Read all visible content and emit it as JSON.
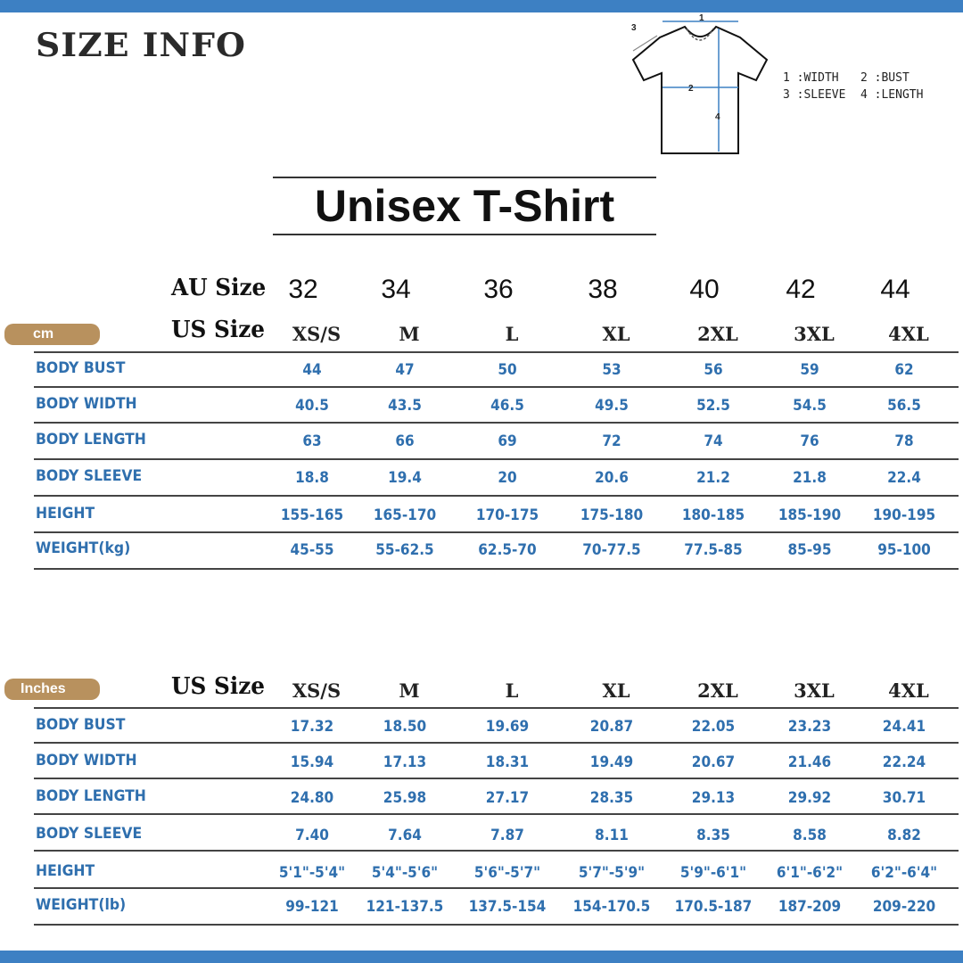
{
  "header": {
    "title": "SIZE INFO",
    "banner": "Unisex T-Shirt"
  },
  "diagram": {
    "labels": [
      "1",
      "2",
      "3",
      "4"
    ],
    "legend": [
      "1 :WIDTH",
      "2 :BUST",
      "3 :SLEEVE",
      "4 :LENGTH"
    ],
    "accent": "#3d80c3"
  },
  "colors": {
    "bar": "#3d80c3",
    "value_text": "#2f6fae",
    "badge": "#b8915e"
  },
  "cm_table": {
    "badge": "cm",
    "au_label": "AU Size",
    "us_label": "US Size",
    "au_sizes": [
      "32",
      "34",
      "36",
      "38",
      "40",
      "42",
      "44"
    ],
    "us_sizes": [
      "XS/S",
      "M",
      "L",
      "XL",
      "2XL",
      "3XL",
      "4XL"
    ],
    "rows": [
      {
        "label": "BODY BUST",
        "values": [
          "44",
          "47",
          "50",
          "53",
          "56",
          "59",
          "62"
        ]
      },
      {
        "label": "BODY WIDTH",
        "values": [
          "40.5",
          "43.5",
          "46.5",
          "49.5",
          "52.5",
          "54.5",
          "56.5"
        ]
      },
      {
        "label": "BODY LENGTH",
        "values": [
          "63",
          "66",
          "69",
          "72",
          "74",
          "76",
          "78"
        ]
      },
      {
        "label": "BODY SLEEVE",
        "values": [
          "18.8",
          "19.4",
          "20",
          "20.6",
          "21.2",
          "21.8",
          "22.4"
        ]
      },
      {
        "label": "HEIGHT",
        "values": [
          "155-165",
          "165-170",
          "170-175",
          "175-180",
          "180-185",
          "185-190",
          "190-195"
        ]
      },
      {
        "label": "WEIGHT(kg)",
        "values": [
          "45-55",
          "55-62.5",
          "62.5-70",
          "70-77.5",
          "77.5-85",
          "85-95",
          "95-100"
        ]
      }
    ]
  },
  "inch_table": {
    "badge": "Inches",
    "us_label": "US Size",
    "us_sizes": [
      "XS/S",
      "M",
      "L",
      "XL",
      "2XL",
      "3XL",
      "4XL"
    ],
    "rows": [
      {
        "label": "BODY BUST",
        "values": [
          "17.32",
          "18.50",
          "19.69",
          "20.87",
          "22.05",
          "23.23",
          "24.41"
        ]
      },
      {
        "label": "BODY WIDTH",
        "values": [
          "15.94",
          "17.13",
          "18.31",
          "19.49",
          "20.67",
          "21.46",
          "22.24"
        ]
      },
      {
        "label": "BODY LENGTH",
        "values": [
          "24.80",
          "25.98",
          "27.17",
          "28.35",
          "29.13",
          "29.92",
          "30.71"
        ]
      },
      {
        "label": "BODY SLEEVE",
        "values": [
          "7.40",
          "7.64",
          "7.87",
          "8.11",
          "8.35",
          "8.58",
          "8.82"
        ]
      },
      {
        "label": "HEIGHT",
        "values": [
          "5'1\"-5'4\"",
          "5'4\"-5'6\"",
          "5'6\"-5'7\"",
          "5'7\"-5'9\"",
          "5'9\"-6'1\"",
          "6'1\"-6'2\"",
          "6'2\"-6'4\""
        ]
      },
      {
        "label": "WEIGHT(lb)",
        "values": [
          "99-121",
          "121-137.5",
          "137.5-154",
          "154-170.5",
          "170.5-187",
          "187-209",
          "209-220"
        ]
      }
    ]
  }
}
